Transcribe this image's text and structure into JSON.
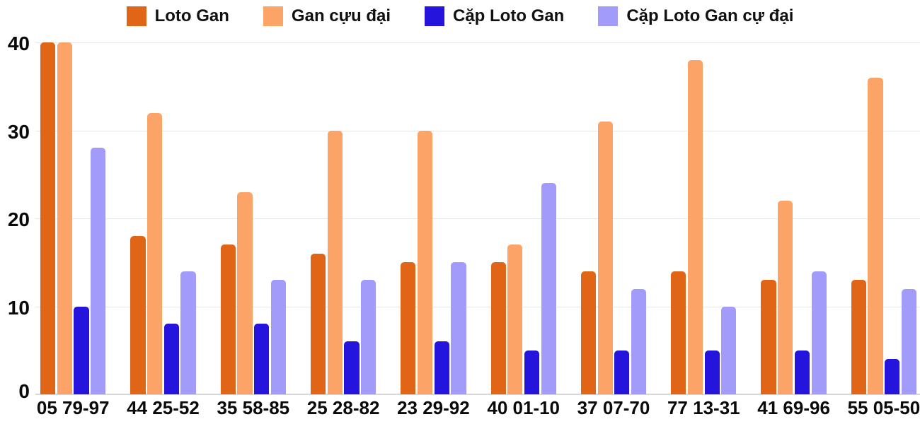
{
  "chart_data": {
    "type": "bar",
    "title": "",
    "xlabel": "",
    "ylabel": "",
    "categories": [
      "05 79-97",
      "44 25-52",
      "35 58-85",
      "25 28-82",
      "23 29-92",
      "40 01-10",
      "37 07-70",
      "77 13-31",
      "41 69-96",
      "55 05-50"
    ],
    "series": [
      {
        "name": "Loto Gan",
        "color": "#E06516",
        "values": [
          40,
          18,
          17,
          16,
          15,
          15,
          14,
          14,
          13,
          13
        ]
      },
      {
        "name": "Gan cựu đại",
        "color": "#FCA468",
        "values": [
          40,
          32,
          23,
          30,
          30,
          17,
          31,
          38,
          22,
          36
        ]
      },
      {
        "name": "Cặp Loto Gan",
        "color": "#2414DC",
        "values": [
          10,
          8,
          8,
          6,
          6,
          5,
          5,
          5,
          5,
          4
        ]
      },
      {
        "name": "Cặp Loto Gan cự đại",
        "color": "#A29BFA",
        "values": [
          28,
          14,
          13,
          13,
          15,
          24,
          12,
          10,
          14,
          12
        ]
      }
    ],
    "ylim": [
      0,
      40
    ],
    "yticks": [
      0,
      10,
      20,
      30,
      40
    ],
    "grid": true,
    "legend_position": "top"
  },
  "colors": {
    "background": "#FFFFFF",
    "gridline": "#E7E7E7",
    "axis_line": "#D8D8D8",
    "text": "#0A0A0A"
  }
}
